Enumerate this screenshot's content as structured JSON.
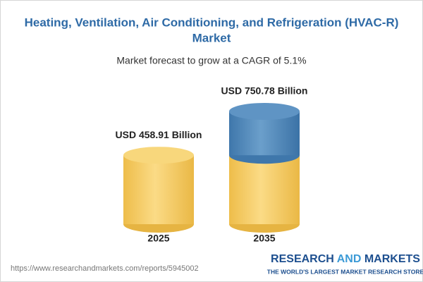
{
  "chart_data": {
    "type": "cylinder",
    "title": [
      "Heating, Ventilation, Air Conditioning, and Refrigeration (HVAC-R)",
      "Market"
    ],
    "subtitle": "Market forecast to grow at a CAGR of 5.1%",
    "categories": [
      "2025",
      "2035"
    ],
    "values": [
      458.91,
      750.78
    ],
    "value_labels": [
      "USD 458.91 Billion",
      "USD 750.78 Billion"
    ],
    "color": "#f3c95f",
    "growth_color": "#4a82b6"
  },
  "footer": {
    "url": "https://www.researchandmarkets.com/reports/5945002",
    "brand": [
      "RESEARCH",
      "AND",
      "MARKETS"
    ],
    "tagline": "THE WORLD'S LARGEST MARKET RESEARCH STORE"
  }
}
